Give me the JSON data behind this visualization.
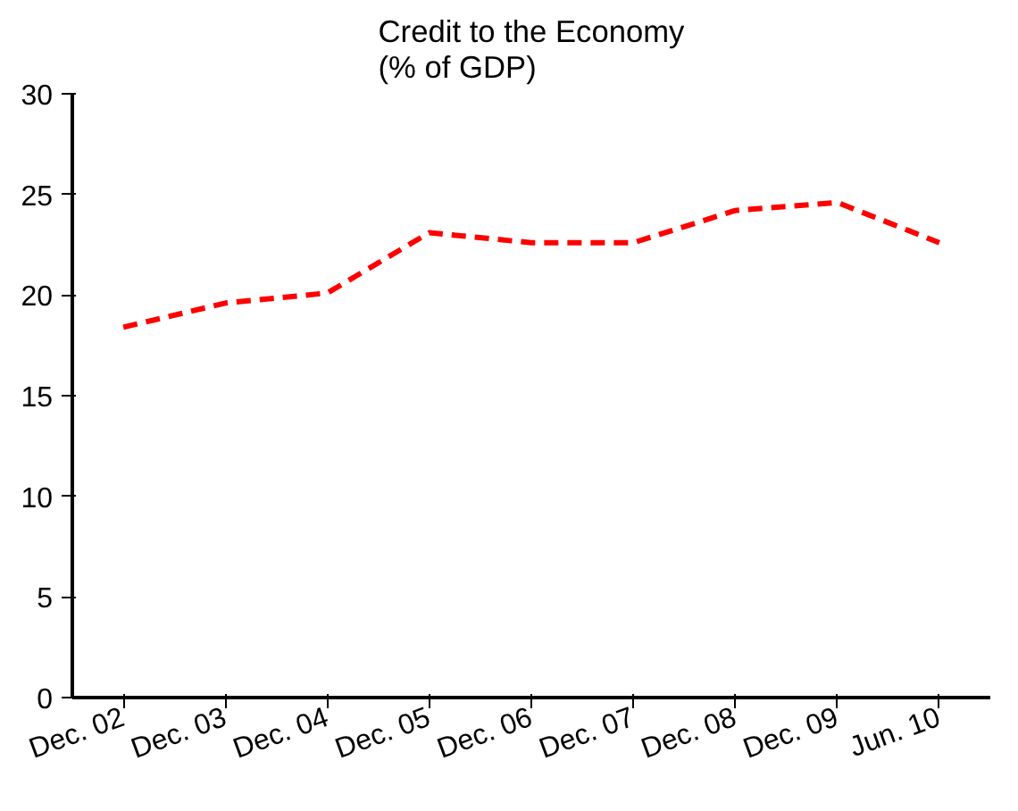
{
  "chart_data": {
    "type": "line",
    "title": "Credit to the Economy\n(% of GDP)",
    "categories": [
      "Dec. 02",
      "Dec. 03",
      "Dec. 04",
      "Dec. 05",
      "Dec. 06",
      "Dec. 07",
      "Dec. 08",
      "Dec. 09",
      "Jun. 10"
    ],
    "series": [
      {
        "color": "#ff0000",
        "values": [
          18.4,
          19.6,
          20.1,
          23.1,
          22.6,
          22.6,
          24.2,
          24.6,
          22.6
        ]
      }
    ],
    "ylim": [
      0,
      30
    ],
    "yticks": [
      0,
      5,
      10,
      15,
      20,
      25,
      30
    ],
    "grid": false,
    "marker": "none",
    "line_style": "dashed"
  }
}
